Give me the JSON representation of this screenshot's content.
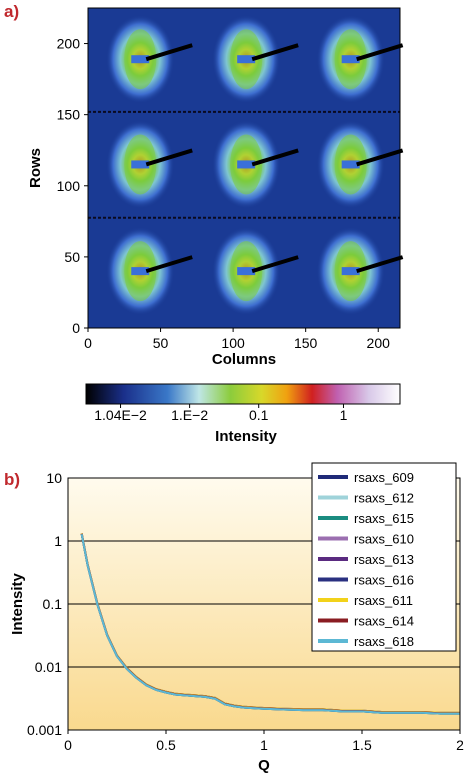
{
  "chart_data": [
    {
      "panel": "a)",
      "type": "heatmap",
      "xlabel": "Columns",
      "ylabel": "Rows",
      "xlim": [
        0,
        215
      ],
      "ylim": [
        0,
        225
      ],
      "xticks": [
        "0",
        "50",
        "100",
        "150",
        "200"
      ],
      "xtick_values": [
        0,
        50,
        100,
        150,
        200
      ],
      "yticks": [
        "0",
        "50",
        "100",
        "150",
        "200"
      ],
      "ytick_values": [
        0,
        50,
        100,
        150,
        200
      ],
      "tile_centers": {
        "x": [
          36,
          109,
          181
        ],
        "y": [
          40,
          115,
          189
        ]
      },
      "colorbar": {
        "label": "Intensity",
        "scale": "log",
        "tick_labels": [
          "1.04E−2",
          "1.E−2",
          "0.1",
          "1"
        ]
      }
    },
    {
      "panel": "b)",
      "type": "line",
      "xlabel": "Q",
      "ylabel": "Intensity",
      "xlim": [
        0,
        2
      ],
      "ylim": [
        0.001,
        10
      ],
      "yscale": "log",
      "xticks": [
        "0",
        "0.5",
        "1",
        "1.5",
        "2"
      ],
      "xtick_values": [
        0,
        0.5,
        1,
        1.5,
        2
      ],
      "yticks": [
        "0.001",
        "0.01",
        "0.1",
        "1",
        "10"
      ],
      "ytick_values": [
        0.001,
        0.01,
        0.1,
        1,
        10
      ],
      "grid": "horizontal",
      "legend_position": "top-right",
      "x": [
        0.07,
        0.1,
        0.15,
        0.2,
        0.25,
        0.3,
        0.35,
        0.4,
        0.45,
        0.5,
        0.55,
        0.6,
        0.65,
        0.7,
        0.75,
        0.8,
        0.85,
        0.9,
        1.0,
        1.1,
        1.2,
        1.3,
        1.4,
        1.5,
        1.6,
        1.7,
        1.8,
        1.9,
        2.0
      ],
      "series": [
        {
          "name": "rsaxs_609",
          "color": "#1f2a78",
          "values": [
            1.3,
            0.42,
            0.1,
            0.032,
            0.015,
            0.0095,
            0.0068,
            0.0052,
            0.0044,
            0.004,
            0.0037,
            0.0036,
            0.0035,
            0.0034,
            0.0032,
            0.0026,
            0.0024,
            0.0023,
            0.0022,
            0.00215,
            0.0021,
            0.0021,
            0.002,
            0.002,
            0.0019,
            0.0019,
            0.0019,
            0.00185,
            0.00185
          ]
        },
        {
          "name": "rsaxs_612",
          "color": "#9fd3da",
          "values": [
            1.3,
            0.42,
            0.1,
            0.032,
            0.015,
            0.0095,
            0.0068,
            0.0052,
            0.0044,
            0.004,
            0.0037,
            0.0036,
            0.0035,
            0.0034,
            0.0032,
            0.0026,
            0.0024,
            0.0023,
            0.0022,
            0.00215,
            0.0021,
            0.0021,
            0.002,
            0.002,
            0.0019,
            0.0019,
            0.0019,
            0.00185,
            0.00185
          ]
        },
        {
          "name": "rsaxs_615",
          "color": "#1a8c80",
          "values": [
            1.3,
            0.42,
            0.1,
            0.032,
            0.015,
            0.0095,
            0.0068,
            0.0052,
            0.0044,
            0.004,
            0.0037,
            0.0036,
            0.0035,
            0.0034,
            0.0032,
            0.0026,
            0.0024,
            0.0023,
            0.0022,
            0.00215,
            0.0021,
            0.0021,
            0.002,
            0.002,
            0.0019,
            0.0019,
            0.0019,
            0.00185,
            0.00185
          ]
        },
        {
          "name": "rsaxs_610",
          "color": "#9b6fb0",
          "values": [
            1.3,
            0.42,
            0.1,
            0.032,
            0.015,
            0.0095,
            0.0068,
            0.0052,
            0.0044,
            0.004,
            0.0037,
            0.0036,
            0.0035,
            0.0034,
            0.0032,
            0.0026,
            0.0024,
            0.0023,
            0.0022,
            0.00215,
            0.0021,
            0.0021,
            0.002,
            0.002,
            0.0019,
            0.0019,
            0.0019,
            0.00185,
            0.00185
          ]
        },
        {
          "name": "rsaxs_613",
          "color": "#5a2a80",
          "values": [
            1.3,
            0.42,
            0.1,
            0.032,
            0.015,
            0.0095,
            0.0068,
            0.0052,
            0.0044,
            0.004,
            0.0037,
            0.0036,
            0.0035,
            0.0034,
            0.0032,
            0.0026,
            0.0024,
            0.0023,
            0.0022,
            0.00215,
            0.0021,
            0.0021,
            0.002,
            0.002,
            0.0019,
            0.0019,
            0.0019,
            0.00185,
            0.00185
          ]
        },
        {
          "name": "rsaxs_616",
          "color": "#2a3080",
          "values": [
            1.3,
            0.42,
            0.1,
            0.032,
            0.015,
            0.0095,
            0.0068,
            0.0052,
            0.0044,
            0.004,
            0.0037,
            0.0036,
            0.0035,
            0.0034,
            0.0032,
            0.0026,
            0.0024,
            0.0023,
            0.0022,
            0.00215,
            0.0021,
            0.0021,
            0.002,
            0.002,
            0.0019,
            0.0019,
            0.0019,
            0.00185,
            0.00185
          ]
        },
        {
          "name": "rsaxs_611",
          "color": "#f2d21a",
          "values": [
            1.3,
            0.42,
            0.1,
            0.032,
            0.015,
            0.0095,
            0.0068,
            0.0052,
            0.0044,
            0.004,
            0.0037,
            0.0036,
            0.0035,
            0.0034,
            0.0032,
            0.0026,
            0.0024,
            0.0023,
            0.0022,
            0.00215,
            0.0021,
            0.0021,
            0.002,
            0.002,
            0.0019,
            0.0019,
            0.0019,
            0.00185,
            0.00185
          ]
        },
        {
          "name": "rsaxs_614",
          "color": "#8a1c22",
          "values": [
            1.3,
            0.42,
            0.1,
            0.032,
            0.015,
            0.0095,
            0.0068,
            0.0052,
            0.0044,
            0.004,
            0.0037,
            0.0036,
            0.0035,
            0.0034,
            0.0032,
            0.0026,
            0.0024,
            0.0023,
            0.0022,
            0.00215,
            0.0021,
            0.0021,
            0.002,
            0.002,
            0.0019,
            0.0019,
            0.0019,
            0.00185,
            0.00185
          ]
        },
        {
          "name": "rsaxs_618",
          "color": "#5cb8d4",
          "values": [
            1.3,
            0.42,
            0.1,
            0.032,
            0.015,
            0.0095,
            0.0068,
            0.0052,
            0.0044,
            0.004,
            0.0037,
            0.0036,
            0.0035,
            0.0034,
            0.0032,
            0.0026,
            0.0024,
            0.0023,
            0.0022,
            0.00215,
            0.0021,
            0.0021,
            0.002,
            0.002,
            0.0019,
            0.0019,
            0.0019,
            0.00185,
            0.00185
          ]
        }
      ]
    }
  ]
}
